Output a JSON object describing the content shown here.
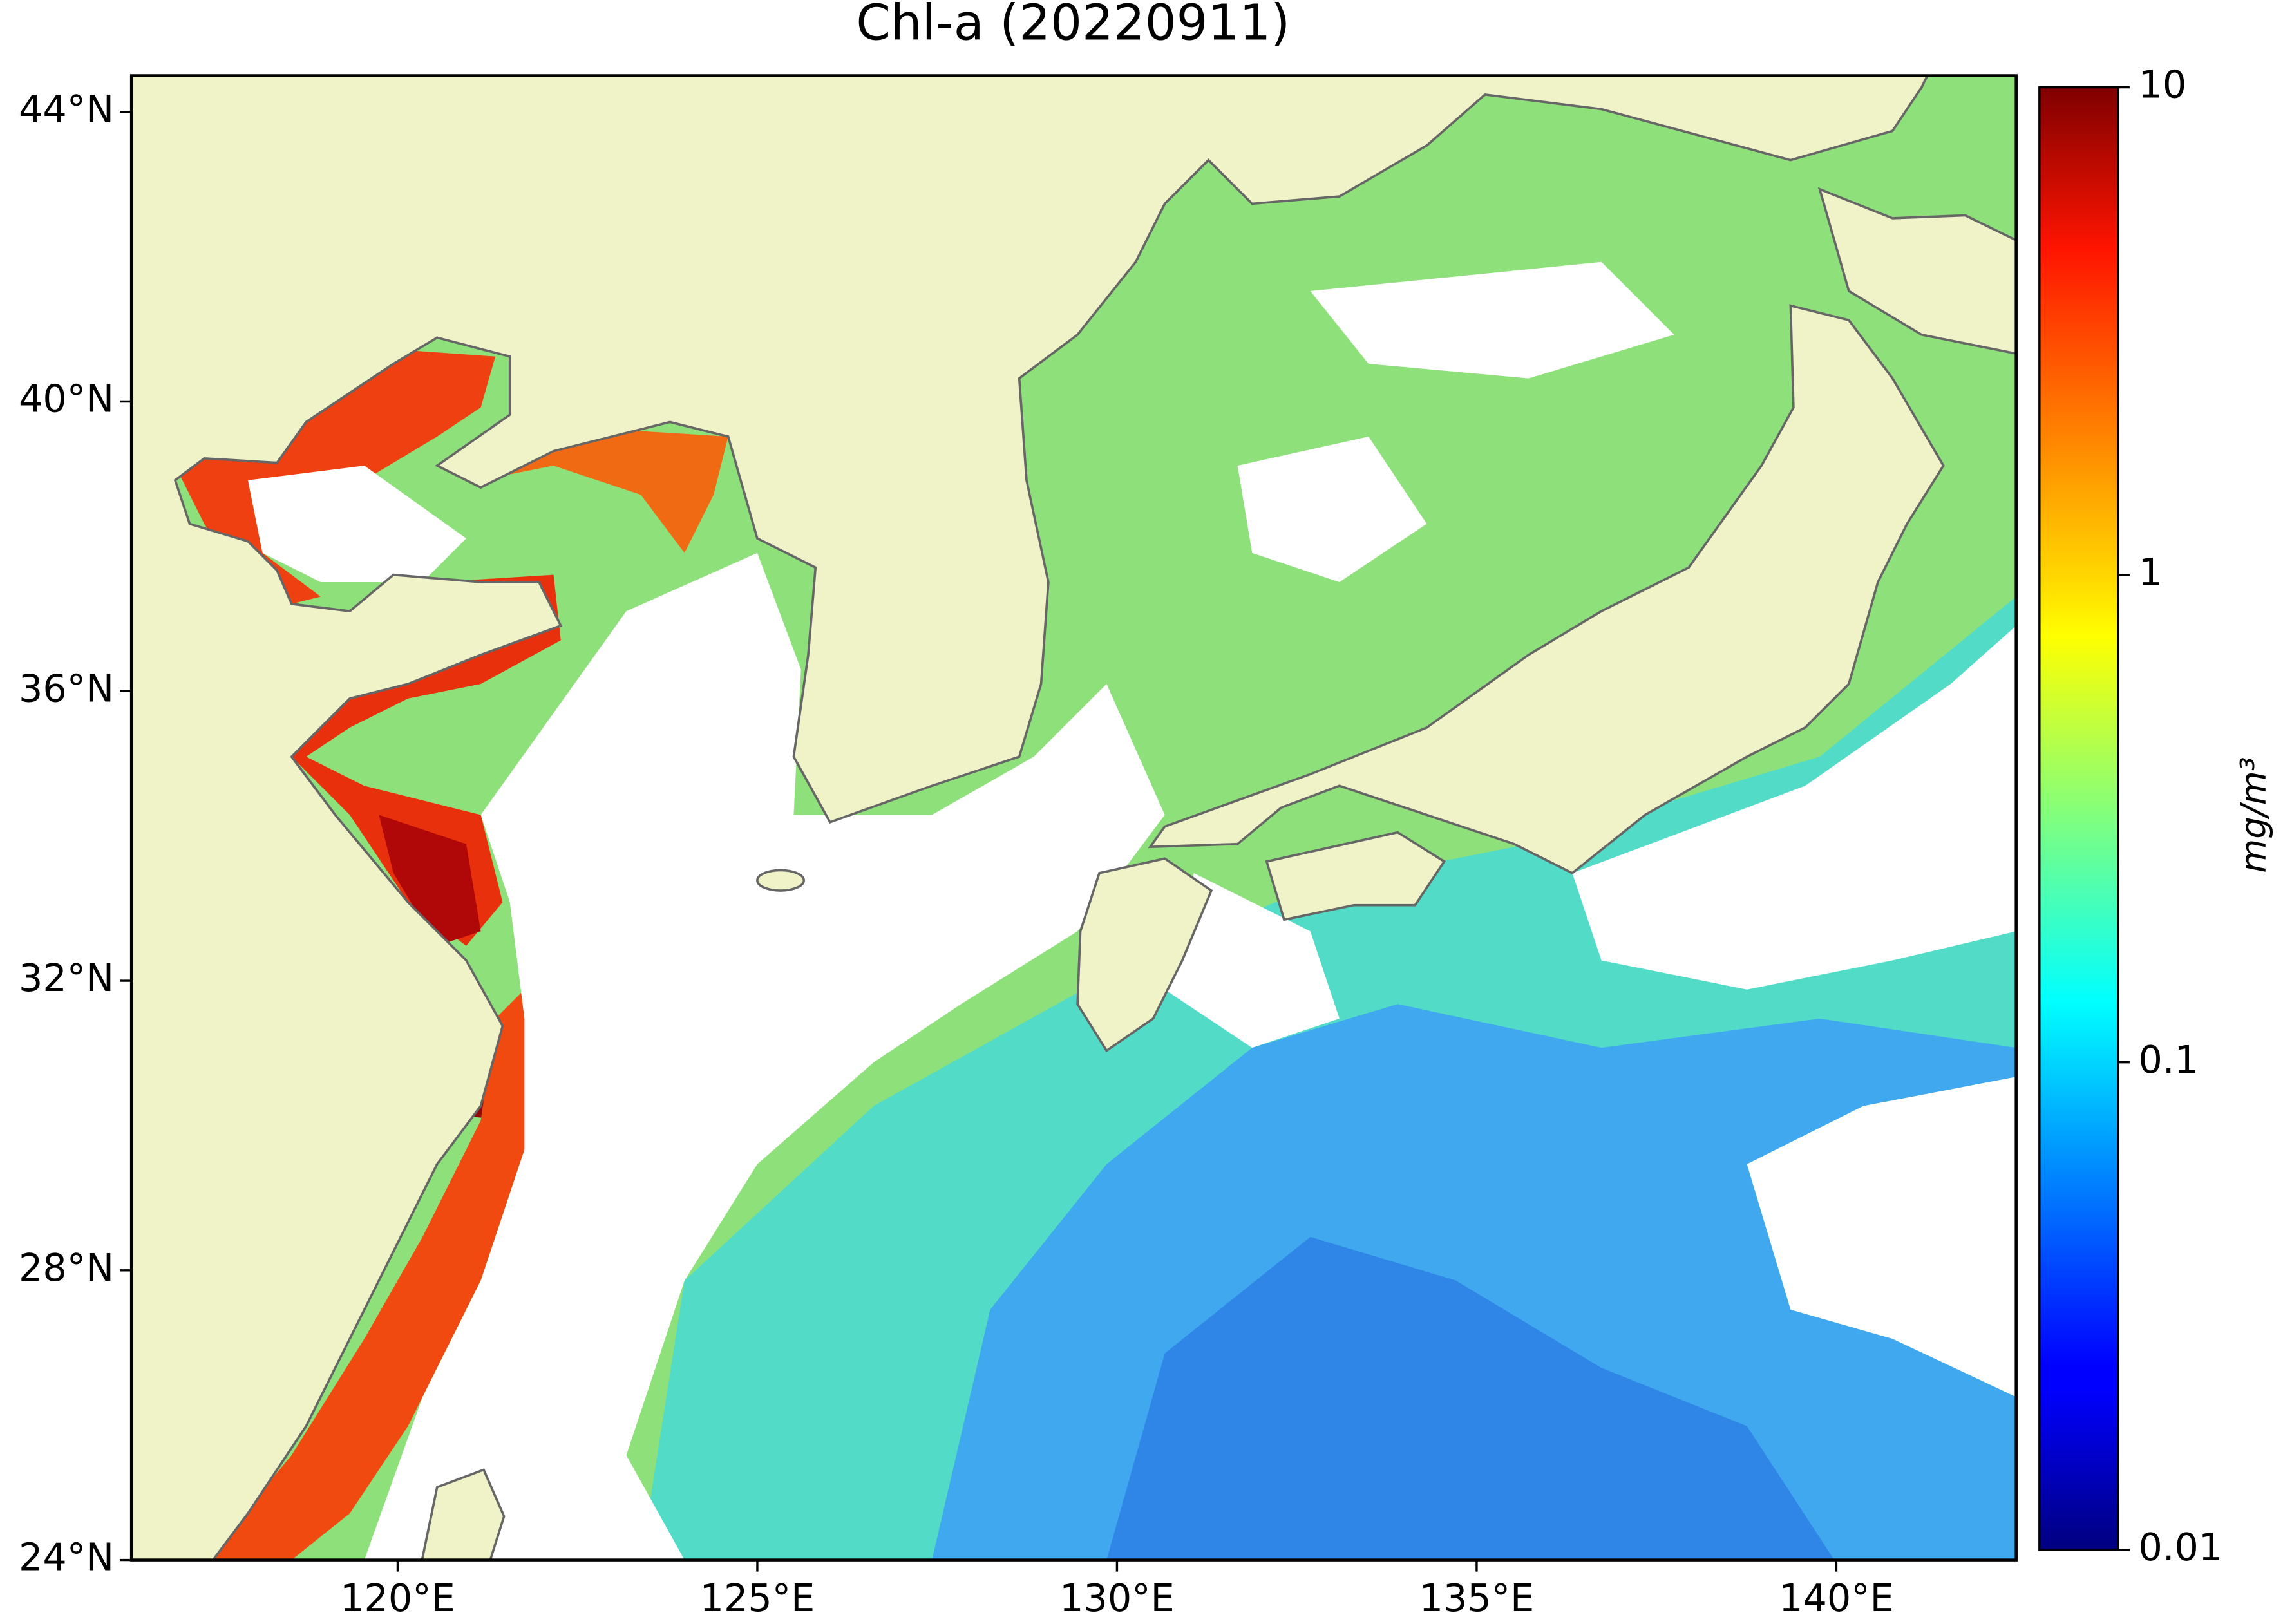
{
  "title": "Chl-a (20220911)",
  "map": {
    "xlim": [
      116.3,
      142.5
    ],
    "ylim": [
      24,
      44.5
    ],
    "xticks": [
      {
        "value": 120,
        "label": "120°E"
      },
      {
        "value": 125,
        "label": "125°E"
      },
      {
        "value": 130,
        "label": "130°E"
      },
      {
        "value": 135,
        "label": "135°E"
      },
      {
        "value": 140,
        "label": "140°E"
      }
    ],
    "yticks": [
      {
        "value": 24,
        "label": "24°N"
      },
      {
        "value": 28,
        "label": "28°N"
      },
      {
        "value": 32,
        "label": "32°N"
      },
      {
        "value": 36,
        "label": "36°N"
      },
      {
        "value": 40,
        "label": "40°N"
      },
      {
        "value": 44,
        "label": "44°N"
      }
    ]
  },
  "colorbar": {
    "label": "mg/m³",
    "scale": "log",
    "colormap": "jet",
    "clim": [
      0.01,
      10
    ],
    "ticks": [
      0.01,
      0.1,
      1,
      10
    ]
  }
}
